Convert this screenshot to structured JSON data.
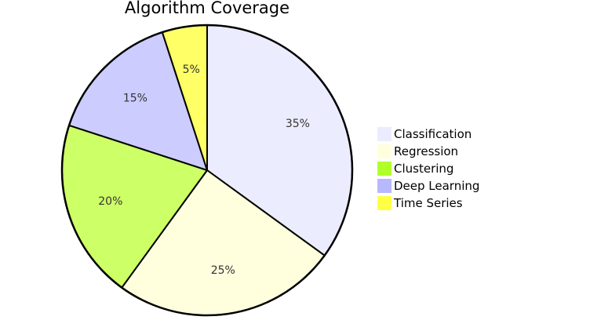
{
  "chart_data": {
    "type": "pie",
    "title": "Algorithm Coverage",
    "legend_position": "right",
    "slices": [
      {
        "label": "Classification",
        "value": 35,
        "display": "35%",
        "color": "#ececff"
      },
      {
        "label": "Regression",
        "value": 25,
        "display": "25%",
        "color": "#ffffde"
      },
      {
        "label": "Clustering",
        "value": 20,
        "display": "20%",
        "color": "#cdff66"
      },
      {
        "label": "Deep Learning",
        "value": 15,
        "display": "15%",
        "color": "#ccccff"
      },
      {
        "label": "Time Series",
        "value": 5,
        "display": "5%",
        "color": "#ffff66"
      }
    ],
    "legend_colors": [
      "#ececff",
      "#ffffde",
      "#b1ff29",
      "#b8b8ff",
      "#ffff45"
    ]
  }
}
